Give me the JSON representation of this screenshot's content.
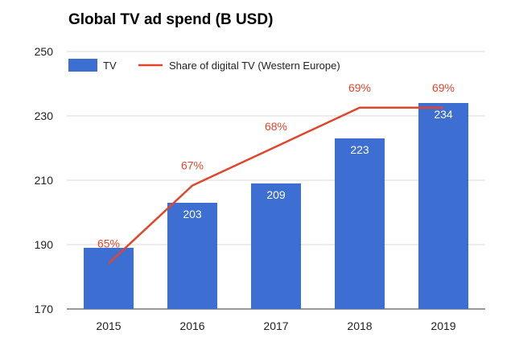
{
  "chart_data": {
    "type": "bar",
    "title": "Global TV ad spend (B USD)",
    "categories": [
      "2015",
      "2016",
      "2017",
      "2018",
      "2019"
    ],
    "series": [
      {
        "name": "TV",
        "values": [
          189,
          203,
          209,
          223,
          234
        ],
        "labels": [
          "",
          "203",
          "209",
          "223",
          "234"
        ],
        "color": "#3c6fd1"
      },
      {
        "name": "Share of digital TV (Western Europe)",
        "type": "line",
        "values": [
          65,
          67,
          68,
          69,
          69
        ],
        "labels": [
          "65%",
          "67%",
          "68%",
          "69%",
          "69%"
        ],
        "color": "#e2452b"
      }
    ],
    "ylim": [
      170,
      250
    ],
    "yticks": [
      170,
      190,
      210,
      230,
      250
    ],
    "grid": true,
    "legend": "top"
  }
}
